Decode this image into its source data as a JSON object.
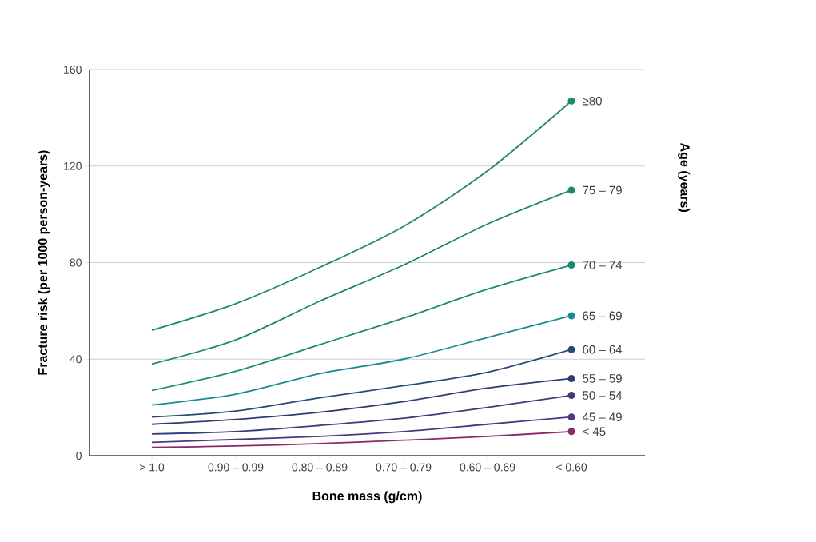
{
  "chart_data": {
    "type": "line",
    "xlabel": "Bone mass (g/cm)",
    "ylabel": "Fracture risk (per 1000 person-years)",
    "legend_title": "Age (years)",
    "categories": [
      "> 1.0",
      "0.90 – 0.99",
      "0.80 – 0.89",
      "0.70 – 0.79",
      "0.60 – 0.69",
      "< 0.60"
    ],
    "ylim": [
      0,
      160
    ],
    "yticks": [
      0,
      40,
      80,
      120,
      160
    ],
    "grid": "y",
    "line_style": "solid",
    "series": [
      {
        "name": "≥80",
        "color": "#1f8a5e",
        "values": [
          52,
          63,
          78,
          95,
          118,
          147
        ]
      },
      {
        "name": "75 – 79",
        "color": "#1f8a5e",
        "values": [
          38,
          48,
          64,
          79,
          96,
          110
        ]
      },
      {
        "name": "70 – 74",
        "color": "#1a8a70",
        "values": [
          27,
          35,
          46,
          57,
          69,
          79
        ]
      },
      {
        "name": "65 – 69",
        "color": "#1a8a92",
        "values": [
          21,
          25.5,
          34,
          40,
          49,
          58
        ]
      },
      {
        "name": "60 – 64",
        "color": "#2a4a7a",
        "values": [
          16,
          18.5,
          24,
          29,
          34.6,
          44
        ]
      },
      {
        "name": "55 – 59",
        "color": "#2e3d70",
        "values": [
          13,
          15,
          18,
          22.4,
          28,
          32
        ]
      },
      {
        "name": "50 – 54",
        "color": "#3a3d7a",
        "values": [
          9,
          10,
          12.5,
          15.5,
          20,
          25
        ]
      },
      {
        "name": "45 – 49",
        "color": "#4a3a80",
        "values": [
          5.5,
          6.7,
          8,
          10,
          13,
          16
        ]
      },
      {
        "name": "< 45",
        "color": "#8a2a6a",
        "values": [
          3.4,
          4,
          5,
          6.4,
          8,
          10
        ]
      }
    ]
  }
}
